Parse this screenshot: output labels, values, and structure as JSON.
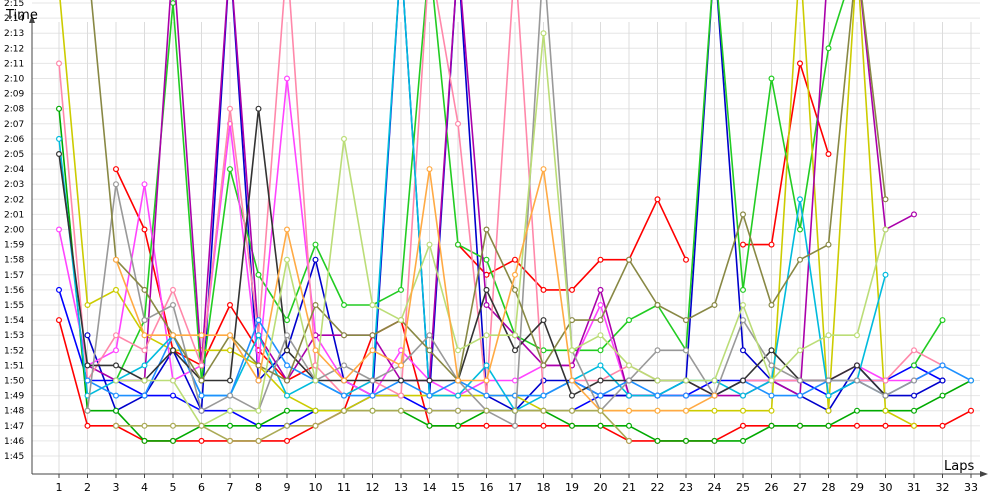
{
  "chart_data": {
    "type": "line",
    "title": "",
    "xlabel": "Laps",
    "ylabel": "Time",
    "x": [
      1,
      2,
      3,
      4,
      5,
      6,
      7,
      8,
      9,
      10,
      11,
      12,
      13,
      14,
      15,
      16,
      17,
      18,
      19,
      20,
      21,
      22,
      23,
      24,
      25,
      26,
      27,
      28,
      29,
      30,
      31,
      32,
      33
    ],
    "x_tick_labels": [
      "1",
      "2",
      "3",
      "4",
      "5",
      "6",
      "7",
      "8",
      "9",
      "10",
      "11",
      "12",
      "13",
      "14",
      "15",
      "16",
      "17",
      "18",
      "19",
      "20",
      "21",
      "22",
      "23",
      "24",
      "25",
      "26",
      "27",
      "28",
      "29",
      "30",
      "31",
      "32",
      "33"
    ],
    "y_tick_labels": [
      "1:45",
      "1:46",
      "1:47",
      "1:48",
      "1:49",
      "1:50",
      "1:51",
      "1:52",
      "1:53",
      "1:54",
      "1:55",
      "1:56",
      "1:57",
      "1:58",
      "1:59",
      "2:00",
      "2:01",
      "2:02",
      "2:03",
      "2:04",
      "2:05",
      "2:06",
      "2:07",
      "2:08",
      "2:09",
      "2:10",
      "2:11",
      "2:12",
      "2:13",
      "2:14",
      "2:15"
    ],
    "y_unit": "seconds",
    "ylim": [
      104,
      138
    ],
    "grid": true,
    "legend": "none",
    "series": [
      {
        "color": "#ff0000",
        "values": [
          114,
          107,
          107,
          106,
          106,
          106,
          106,
          106,
          106,
          107,
          108,
          113,
          114,
          107,
          107,
          107,
          107,
          107,
          107,
          107,
          106,
          106,
          106,
          106,
          107,
          107,
          107,
          107,
          107,
          107,
          107,
          107,
          108
        ]
      },
      {
        "color": "#ff0000",
        "values": [
          null,
          null,
          124,
          120,
          112,
          111,
          115,
          112,
          110,
          111,
          null,
          null,
          null,
          null,
          119,
          117,
          118,
          116,
          116,
          118,
          118,
          122,
          118,
          null,
          119,
          119,
          131,
          125,
          null,
          null,
          null,
          null,
          null
        ]
      },
      {
        "color": "#0000ff",
        "values": [
          116,
          110,
          110,
          109,
          109,
          108,
          108,
          107,
          107,
          108,
          108,
          109,
          109,
          108,
          108,
          108,
          108,
          108,
          108,
          109,
          109,
          109,
          109,
          110,
          110,
          110,
          110,
          109,
          110,
          110,
          111,
          110,
          null
        ]
      },
      {
        "color": "#0000cc",
        "values": [
          null,
          113,
          108,
          109,
          112,
          108,
          138,
          110,
          112,
          118,
          110,
          109,
          138,
          109,
          138,
          109,
          108,
          110,
          110,
          109,
          109,
          109,
          110,
          138,
          112,
          110,
          109,
          108,
          111,
          109,
          109,
          110,
          null
        ]
      },
      {
        "color": "#00aa00",
        "values": [
          128,
          108,
          108,
          106,
          106,
          107,
          107,
          107,
          108,
          108,
          108,
          108,
          108,
          107,
          107,
          108,
          108,
          108,
          107,
          107,
          107,
          106,
          106,
          106,
          106,
          107,
          107,
          107,
          108,
          108,
          108,
          109,
          110
        ]
      },
      {
        "color": "#22cc22",
        "values": [
          null,
          null,
          110,
          114,
          135,
          110,
          124,
          117,
          114,
          119,
          115,
          115,
          116,
          138,
          119,
          118,
          113,
          112,
          112,
          112,
          114,
          115,
          112,
          138,
          116,
          130,
          120,
          132,
          138,
          null,
          111,
          114,
          null
        ]
      },
      {
        "color": "#cccc00",
        "values": [
          136,
          115,
          116,
          113,
          112,
          112,
          112,
          111,
          109,
          108,
          108,
          109,
          109,
          109,
          109,
          109,
          109,
          108,
          108,
          108,
          108,
          108,
          108,
          108,
          108,
          108,
          138,
          108,
          138,
          108,
          107,
          null,
          null
        ]
      },
      {
        "color": "#ff44ff",
        "values": [
          120,
          111,
          112,
          123,
          110,
          111,
          127,
          111,
          130,
          113,
          110,
          109,
          112,
          110,
          109,
          110,
          110,
          111,
          111,
          115,
          109,
          109,
          109,
          109,
          110,
          110,
          110,
          110,
          111,
          110,
          110,
          111,
          null
        ]
      },
      {
        "color": "#aa00aa",
        "values": [
          null,
          111,
          110,
          110,
          138,
          111,
          138,
          113,
          110,
          113,
          113,
          113,
          110,
          110,
          138,
          115,
          113,
          111,
          111,
          116,
          109,
          109,
          109,
          109,
          109,
          110,
          109,
          138,
          138,
          120,
          121,
          null,
          null
        ]
      },
      {
        "color": "#ff88aa",
        "values": [
          131,
          110,
          113,
          112,
          116,
          111,
          128,
          113,
          138,
          111,
          109,
          110,
          109,
          138,
          127,
          109,
          138,
          109,
          110,
          110,
          111,
          110,
          110,
          109,
          110,
          110,
          110,
          110,
          110,
          110,
          112,
          111,
          null
        ]
      },
      {
        "color": "#00bbdd",
        "values": [
          126,
          109,
          110,
          111,
          113,
          109,
          109,
          113,
          109,
          110,
          109,
          110,
          138,
          109,
          109,
          111,
          108,
          109,
          110,
          111,
          109,
          109,
          110,
          110,
          109,
          110,
          122,
          109,
          110,
          117,
          null,
          null,
          null
        ]
      },
      {
        "color": "#1e90ff",
        "values": [
          null,
          110,
          109,
          109,
          113,
          109,
          109,
          114,
          111,
          110,
          109,
          109,
          110,
          109,
          110,
          109,
          109,
          109,
          110,
          109,
          110,
          109,
          109,
          109,
          110,
          109,
          109,
          110,
          110,
          109,
          110,
          111,
          110
        ]
      },
      {
        "color": "#333333",
        "values": [
          125,
          111,
          111,
          110,
          112,
          110,
          110,
          128,
          112,
          110,
          110,
          110,
          110,
          110,
          110,
          116,
          112,
          114,
          109,
          110,
          110,
          110,
          110,
          109,
          110,
          112,
          110,
          110,
          111,
          109,
          null,
          null,
          null
        ]
      },
      {
        "color": "#999999",
        "values": [
          null,
          108,
          123,
          114,
          115,
          108,
          109,
          108,
          113,
          110,
          111,
          110,
          111,
          113,
          110,
          108,
          107,
          138,
          112,
          108,
          110,
          112,
          112,
          109,
          114,
          111,
          110,
          110,
          110,
          109,
          110,
          null,
          null
        ]
      },
      {
        "color": "#888844",
        "values": [
          null,
          138,
          118,
          116,
          113,
          110,
          113,
          111,
          110,
          115,
          113,
          113,
          114,
          112,
          110,
          120,
          116,
          111,
          114,
          114,
          118,
          115,
          114,
          115,
          121,
          115,
          118,
          119,
          138,
          122,
          null,
          null,
          null
        ]
      },
      {
        "color": "#bbdd77",
        "values": [
          null,
          null,
          110,
          110,
          110,
          107,
          108,
          108,
          118,
          110,
          126,
          115,
          114,
          119,
          112,
          113,
          113,
          133,
          112,
          113,
          111,
          110,
          110,
          110,
          115,
          110,
          112,
          113,
          113,
          120,
          null,
          null,
          null
        ]
      },
      {
        "color": "#ffaa44",
        "values": [
          null,
          null,
          118,
          113,
          113,
          113,
          113,
          110,
          120,
          112,
          110,
          112,
          111,
          124,
          110,
          110,
          117,
          124,
          110,
          108,
          108,
          108,
          108,
          109,
          null,
          null,
          null,
          null,
          null,
          null,
          null,
          null,
          null
        ]
      },
      {
        "color": "#aaaa55",
        "values": [
          null,
          null,
          107,
          107,
          107,
          107,
          106,
          106,
          107,
          107,
          108,
          108,
          108,
          108,
          108,
          108,
          108,
          108,
          108,
          108,
          106,
          null,
          null,
          null,
          null,
          null,
          null,
          null,
          null,
          null,
          null,
          null,
          null
        ]
      }
    ]
  }
}
